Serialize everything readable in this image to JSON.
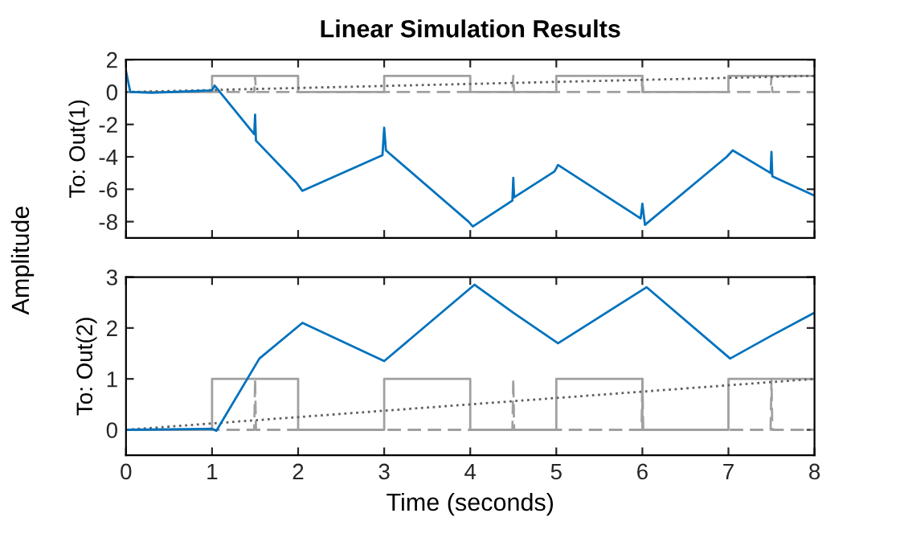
{
  "chart_data": [
    {
      "type": "line",
      "title": "Linear Simulation Results",
      "ylabel": "To: Out(1)",
      "annotations": [
        "Amplitude"
      ],
      "xlim": [
        0,
        8
      ],
      "xticks": [
        0,
        1,
        2,
        3,
        4,
        5,
        6,
        7,
        8
      ],
      "ylim": [
        -9,
        2
      ],
      "yticks": [
        -8,
        -6,
        -4,
        -2,
        0,
        2
      ],
      "tick_labels": "y",
      "grid": false,
      "legend": false,
      "series": [
        {
          "color": "#a0a0a0",
          "line_style": "solid",
          "x": [
            0,
            1,
            1,
            2,
            2,
            3,
            3,
            4,
            4,
            5,
            5,
            6,
            6,
            7,
            7,
            8
          ],
          "values": [
            0,
            0,
            1,
            1,
            0,
            0,
            1,
            1,
            0,
            0,
            1,
            1,
            0,
            0,
            1,
            1
          ]
        },
        {
          "color": "#a0a0a0",
          "line_style": "dashed",
          "x": [
            0,
            1.49,
            1.5,
            1.51,
            4.49,
            4.5,
            4.51,
            5.99,
            6.0,
            6.01,
            7.49,
            7.5,
            7.51,
            8
          ],
          "values": [
            0,
            0,
            1,
            0,
            0,
            1,
            0,
            0,
            1,
            0,
            0,
            1,
            0,
            0
          ]
        },
        {
          "color": "#606060",
          "line_style": "dotted",
          "x": [
            0,
            8
          ],
          "values": [
            0,
            1
          ]
        },
        {
          "color": "#0072bd",
          "line_style": "solid",
          "x": [
            0,
            0.05,
            0.3,
            1.0,
            1.03,
            1.49,
            1.5,
            1.51,
            1.98,
            2.05,
            2.98,
            3.0,
            3.02,
            3.98,
            4.03,
            4.49,
            4.5,
            4.51,
            4.98,
            5.02,
            5.98,
            6.0,
            6.03,
            6.98,
            7.05,
            7.49,
            7.5,
            7.51,
            8
          ],
          "values": [
            1.3,
            0,
            -0.05,
            0.1,
            0.4,
            -2.6,
            -1.4,
            -3.0,
            -5.6,
            -6.1,
            -3.9,
            -2.2,
            -3.6,
            -8.0,
            -8.3,
            -6.7,
            -5.3,
            -6.5,
            -4.9,
            -4.5,
            -7.8,
            -6.9,
            -8.2,
            -4.0,
            -3.6,
            -5.0,
            -3.7,
            -5.2,
            -6.4
          ]
        }
      ]
    },
    {
      "type": "line",
      "ylabel": "To: Out(2)",
      "xlabel": "Time (seconds)",
      "xlim": [
        0,
        8
      ],
      "xticks": [
        0,
        1,
        2,
        3,
        4,
        5,
        6,
        7,
        8
      ],
      "ylim": [
        -0.5,
        3
      ],
      "yticks": [
        0,
        1,
        2,
        3
      ],
      "grid": false,
      "legend": false,
      "series": [
        {
          "color": "#a0a0a0",
          "line_style": "solid",
          "x": [
            0,
            1,
            1,
            2,
            2,
            3,
            3,
            4,
            4,
            5,
            5,
            6,
            6,
            7,
            7,
            8
          ],
          "values": [
            0,
            0,
            1,
            1,
            0,
            0,
            1,
            1,
            0,
            0,
            1,
            1,
            0,
            0,
            1,
            1
          ]
        },
        {
          "color": "#a0a0a0",
          "line_style": "dashed",
          "x": [
            0,
            1.49,
            1.5,
            1.51,
            4.49,
            4.5,
            4.51,
            5.99,
            6.0,
            6.01,
            7.49,
            7.5,
            7.51,
            8
          ],
          "values": [
            0,
            0,
            1,
            0,
            0,
            1,
            0,
            0,
            1,
            0,
            0,
            1,
            0,
            0
          ]
        },
        {
          "color": "#606060",
          "line_style": "dotted",
          "x": [
            0,
            8
          ],
          "values": [
            0,
            1
          ]
        },
        {
          "color": "#0072bd",
          "line_style": "solid",
          "x": [
            0,
            1.0,
            1.05,
            1.55,
            2.05,
            3.0,
            4.05,
            4.5,
            5.02,
            6.05,
            7.02,
            7.5,
            8
          ],
          "values": [
            0,
            0.02,
            -0.02,
            1.4,
            2.1,
            1.35,
            2.85,
            2.3,
            1.7,
            2.8,
            1.4,
            1.85,
            2.3
          ]
        }
      ]
    }
  ]
}
